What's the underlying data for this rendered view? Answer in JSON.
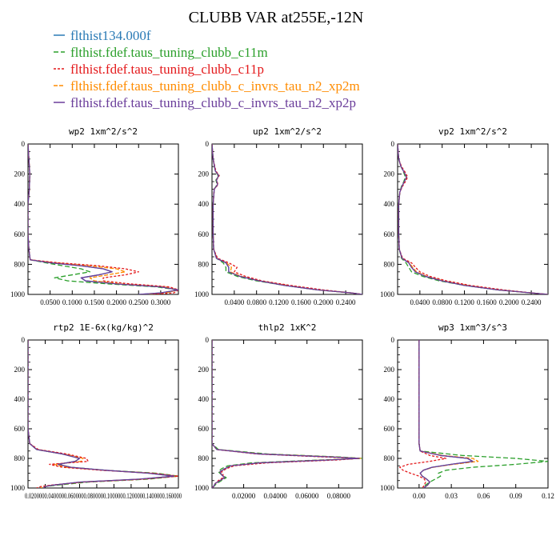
{
  "title": "CLUBB VAR at255E,-12N",
  "legend": [
    {
      "label": "flthist134.000f",
      "color": "#2a7ab5",
      "dash": "none"
    },
    {
      "label": "flthist.fdef.taus_tuning_clubb_c11m",
      "color": "#2ca02c",
      "dash": "6,3"
    },
    {
      "label": "flthist.fdef.taus_tuning_clubb_c11p",
      "color": "#e41a1c",
      "dash": "3,2"
    },
    {
      "label": "flthist.fdef.taus_tuning_clubb_c_invrs_tau_n2_xp2m",
      "color": "#ff8c00",
      "dash": "5,2"
    },
    {
      "label": "flthist.fdef.taus_tuning_clubb_c_invrs_tau_n2_xp2p",
      "color": "#6a3d9a",
      "dash": "none"
    }
  ],
  "chart_data": [
    {
      "type": "line",
      "title": "wp2  1xm^2/s^2",
      "xlim": [
        0,
        0.34
      ],
      "ylim": [
        1000,
        0
      ],
      "xticks": [
        0.05,
        0.1,
        0.15,
        0.2,
        0.25,
        0.3
      ],
      "xtick_labels": [
        "0.0500",
        "0.1000",
        "0.1500",
        "0.2000",
        "0.2500",
        "0.3000"
      ],
      "yticks": [
        0,
        200,
        400,
        600,
        800,
        1000
      ],
      "ytick_labels": [
        "0",
        "200",
        "400",
        "600",
        "800",
        "1000"
      ],
      "y": [
        0,
        100,
        200,
        300,
        400,
        500,
        600,
        700,
        770,
        790,
        810,
        830,
        850,
        870,
        890,
        910,
        930,
        950,
        970,
        990,
        1000
      ],
      "series": [
        {
          "values": [
            0.0,
            0.002,
            0.004,
            0.003,
            0.0,
            0.0,
            0.0,
            0.002,
            0.005,
            0.05,
            0.12,
            0.17,
            0.19,
            0.16,
            0.12,
            0.13,
            0.2,
            0.3,
            0.34,
            0.3,
            0.25
          ]
        },
        {
          "values": [
            0.0,
            0.002,
            0.004,
            0.003,
            0.0,
            0.0,
            0.0,
            0.002,
            0.005,
            0.04,
            0.08,
            0.12,
            0.14,
            0.1,
            0.06,
            0.09,
            0.18,
            0.29,
            0.34,
            0.31,
            0.26
          ]
        },
        {
          "values": [
            0.0,
            0.002,
            0.004,
            0.003,
            0.0,
            0.0,
            0.0,
            0.002,
            0.005,
            0.07,
            0.16,
            0.22,
            0.25,
            0.22,
            0.17,
            0.17,
            0.23,
            0.32,
            0.34,
            0.33,
            0.28
          ]
        },
        {
          "values": [
            0.0,
            0.002,
            0.004,
            0.003,
            0.0,
            0.0,
            0.0,
            0.002,
            0.005,
            0.06,
            0.14,
            0.2,
            0.22,
            0.18,
            0.14,
            0.15,
            0.21,
            0.31,
            0.34,
            0.31,
            0.26
          ]
        },
        {
          "values": [
            0.0,
            0.002,
            0.004,
            0.003,
            0.0,
            0.0,
            0.0,
            0.002,
            0.005,
            0.05,
            0.12,
            0.17,
            0.19,
            0.16,
            0.12,
            0.13,
            0.2,
            0.3,
            0.34,
            0.3,
            0.25
          ]
        }
      ]
    },
    {
      "type": "line",
      "title": "up2  1xm^2/s^2",
      "xlim": [
        0,
        0.27
      ],
      "ylim": [
        1000,
        0
      ],
      "xticks": [
        0.04,
        0.08,
        0.12,
        0.16,
        0.2,
        0.24
      ],
      "xtick_labels": [
        "0.0400",
        "0.0800",
        "0.1200",
        "0.1600",
        "0.2000",
        "0.2400"
      ],
      "yticks": [
        0,
        200,
        400,
        600,
        800,
        1000
      ],
      "ytick_labels": [
        "0",
        "200",
        "400",
        "600",
        "800",
        "1000"
      ],
      "y": [
        0,
        100,
        180,
        210,
        240,
        270,
        300,
        400,
        500,
        600,
        700,
        760,
        790,
        820,
        850,
        880,
        910,
        940,
        970,
        990,
        1000
      ],
      "series": [
        {
          "values": [
            0.0,
            0.002,
            0.006,
            0.012,
            0.008,
            0.01,
            0.004,
            0.002,
            0.002,
            0.002,
            0.003,
            0.008,
            0.025,
            0.03,
            0.03,
            0.05,
            0.085,
            0.13,
            0.19,
            0.25,
            0.27
          ]
        },
        {
          "values": [
            0.0,
            0.002,
            0.006,
            0.011,
            0.007,
            0.009,
            0.004,
            0.002,
            0.002,
            0.002,
            0.003,
            0.008,
            0.02,
            0.025,
            0.025,
            0.045,
            0.08,
            0.13,
            0.19,
            0.25,
            0.27
          ]
        },
        {
          "values": [
            0.0,
            0.002,
            0.007,
            0.013,
            0.008,
            0.011,
            0.004,
            0.002,
            0.002,
            0.002,
            0.003,
            0.01,
            0.03,
            0.045,
            0.04,
            0.06,
            0.09,
            0.14,
            0.2,
            0.25,
            0.27
          ]
        },
        {
          "values": [
            0.0,
            0.002,
            0.006,
            0.012,
            0.008,
            0.01,
            0.004,
            0.002,
            0.002,
            0.002,
            0.003,
            0.009,
            0.026,
            0.035,
            0.033,
            0.052,
            0.086,
            0.135,
            0.19,
            0.25,
            0.27
          ]
        },
        {
          "values": [
            0.0,
            0.002,
            0.006,
            0.012,
            0.008,
            0.01,
            0.004,
            0.002,
            0.002,
            0.002,
            0.003,
            0.008,
            0.025,
            0.03,
            0.03,
            0.05,
            0.085,
            0.13,
            0.19,
            0.25,
            0.27
          ]
        }
      ]
    },
    {
      "type": "line",
      "title": "vp2  1xm^2/s^2",
      "xlim": [
        0,
        0.27
      ],
      "ylim": [
        1000,
        0
      ],
      "xticks": [
        0.04,
        0.08,
        0.12,
        0.16,
        0.2,
        0.24
      ],
      "xtick_labels": [
        "0.0400",
        "0.0800",
        "0.1200",
        "0.1600",
        "0.2000",
        "0.2400"
      ],
      "yticks": [
        0,
        200,
        400,
        600,
        800,
        1000
      ],
      "ytick_labels": [
        "0",
        "200",
        "400",
        "600",
        "800",
        "1000"
      ],
      "y": [
        0,
        100,
        150,
        190,
        220,
        250,
        280,
        320,
        400,
        500,
        600,
        700,
        760,
        790,
        820,
        850,
        880,
        910,
        940,
        970,
        990,
        1000
      ],
      "series": [
        {
          "values": [
            0.0,
            0.002,
            0.006,
            0.012,
            0.016,
            0.012,
            0.008,
            0.004,
            0.002,
            0.002,
            0.002,
            0.003,
            0.008,
            0.02,
            0.025,
            0.032,
            0.05,
            0.08,
            0.12,
            0.18,
            0.24,
            0.27
          ]
        },
        {
          "values": [
            0.0,
            0.002,
            0.006,
            0.011,
            0.014,
            0.011,
            0.007,
            0.004,
            0.002,
            0.002,
            0.002,
            0.003,
            0.007,
            0.015,
            0.02,
            0.025,
            0.045,
            0.075,
            0.12,
            0.18,
            0.24,
            0.27
          ]
        },
        {
          "values": [
            0.0,
            0.002,
            0.007,
            0.014,
            0.018,
            0.014,
            0.009,
            0.004,
            0.002,
            0.002,
            0.002,
            0.003,
            0.009,
            0.025,
            0.032,
            0.04,
            0.058,
            0.088,
            0.13,
            0.19,
            0.24,
            0.27
          ]
        },
        {
          "values": [
            0.0,
            0.002,
            0.006,
            0.012,
            0.016,
            0.012,
            0.008,
            0.004,
            0.002,
            0.002,
            0.002,
            0.003,
            0.008,
            0.021,
            0.027,
            0.034,
            0.052,
            0.082,
            0.125,
            0.18,
            0.24,
            0.27
          ]
        },
        {
          "values": [
            0.0,
            0.002,
            0.006,
            0.012,
            0.016,
            0.012,
            0.008,
            0.004,
            0.002,
            0.002,
            0.002,
            0.003,
            0.008,
            0.02,
            0.025,
            0.032,
            0.05,
            0.08,
            0.12,
            0.18,
            0.24,
            0.27
          ]
        }
      ]
    },
    {
      "type": "line",
      "title": "rtp2  1E-6x(kg/kg)^2",
      "xlim": [
        0,
        0.175
      ],
      "ylim": [
        1000,
        0
      ],
      "xticks": [
        0.02,
        0.04,
        0.06,
        0.08,
        0.1,
        0.12,
        0.14,
        0.16
      ],
      "xtick_labels": [
        "0.0200",
        "0.0400",
        "0.0600",
        "0.0800",
        "0.1000",
        "0.1200",
        "0.1400",
        "0.1600"
      ],
      "x_label_text": "0.0200000.0400000.0600000.0800000.1000000.1200000.1400000.160000",
      "yticks": [
        0,
        200,
        400,
        600,
        800,
        1000
      ],
      "ytick_labels": [
        "0",
        "200",
        "400",
        "600",
        "800",
        "1000"
      ],
      "y": [
        0,
        200,
        400,
        600,
        700,
        740,
        770,
        800,
        820,
        840,
        860,
        880,
        900,
        920,
        940,
        960,
        980,
        990,
        1000
      ],
      "series": [
        {
          "values": [
            0.0,
            0.0,
            0.0,
            0.0,
            0.002,
            0.01,
            0.04,
            0.06,
            0.055,
            0.035,
            0.05,
            0.09,
            0.14,
            0.17,
            0.13,
            0.06,
            0.03,
            0.02,
            0.018
          ]
        },
        {
          "values": [
            0.0,
            0.0,
            0.0,
            0.0,
            0.002,
            0.01,
            0.04,
            0.06,
            0.055,
            0.035,
            0.05,
            0.09,
            0.15,
            0.175,
            0.14,
            0.07,
            0.035,
            0.02,
            0.018
          ]
        },
        {
          "values": [
            0.0,
            0.0,
            0.0,
            0.0,
            0.002,
            0.012,
            0.045,
            0.068,
            0.07,
            0.025,
            0.04,
            0.085,
            0.145,
            0.175,
            0.135,
            0.065,
            0.028,
            0.015,
            0.01
          ]
        },
        {
          "values": [
            0.0,
            0.0,
            0.0,
            0.0,
            0.002,
            0.011,
            0.042,
            0.064,
            0.062,
            0.03,
            0.045,
            0.088,
            0.142,
            0.172,
            0.132,
            0.062,
            0.03,
            0.018,
            0.015
          ]
        },
        {
          "values": [
            0.0,
            0.0,
            0.0,
            0.0,
            0.002,
            0.01,
            0.04,
            0.06,
            0.055,
            0.035,
            0.05,
            0.09,
            0.14,
            0.17,
            0.13,
            0.06,
            0.03,
            0.02,
            0.018
          ]
        }
      ]
    },
    {
      "type": "line",
      "title": "thlp2  1xK^2",
      "xlim": [
        0,
        0.095
      ],
      "ylim": [
        1000,
        0
      ],
      "xticks": [
        0.02,
        0.04,
        0.06,
        0.08
      ],
      "xtick_labels": [
        "0.02000",
        "0.04000",
        "0.06000",
        "0.08000"
      ],
      "yticks": [
        0,
        200,
        400,
        600,
        800,
        1000
      ],
      "ytick_labels": [
        "0",
        "200",
        "400",
        "600",
        "800",
        "1000"
      ],
      "y": [
        0,
        200,
        400,
        600,
        700,
        740,
        770,
        790,
        800,
        810,
        830,
        850,
        870,
        890,
        910,
        930,
        950,
        970,
        990,
        1000
      ],
      "series": [
        {
          "values": [
            0.0,
            0.0,
            0.0,
            0.0,
            0.0,
            0.003,
            0.03,
            0.075,
            0.093,
            0.075,
            0.03,
            0.012,
            0.008,
            0.005,
            0.006,
            0.008,
            0.005,
            0.002,
            0.001,
            0.0
          ]
        },
        {
          "values": [
            0.0,
            0.0,
            0.0,
            0.0,
            0.0,
            0.004,
            0.035,
            0.08,
            0.095,
            0.07,
            0.025,
            0.01,
            0.006,
            0.004,
            0.006,
            0.009,
            0.006,
            0.003,
            0.001,
            0.0
          ]
        },
        {
          "values": [
            0.0,
            0.0,
            0.0,
            0.0,
            0.0,
            0.003,
            0.028,
            0.07,
            0.093,
            0.08,
            0.035,
            0.014,
            0.009,
            0.006,
            0.007,
            0.007,
            0.004,
            0.002,
            0.001,
            0.0
          ]
        },
        {
          "values": [
            0.0,
            0.0,
            0.0,
            0.0,
            0.0,
            0.003,
            0.031,
            0.077,
            0.094,
            0.074,
            0.03,
            0.012,
            0.008,
            0.005,
            0.006,
            0.008,
            0.005,
            0.002,
            0.001,
            0.0
          ]
        },
        {
          "values": [
            0.0,
            0.0,
            0.0,
            0.0,
            0.0,
            0.003,
            0.03,
            0.075,
            0.093,
            0.075,
            0.03,
            0.012,
            0.008,
            0.005,
            0.006,
            0.008,
            0.005,
            0.002,
            0.001,
            0.0
          ]
        }
      ]
    },
    {
      "type": "line",
      "title": "wp3  1xm^3/s^3",
      "xlim": [
        -0.02,
        0.12
      ],
      "ylim": [
        1000,
        0
      ],
      "xticks": [
        0.0,
        0.03,
        0.06,
        0.09,
        0.12
      ],
      "xtick_labels": [
        "0.00",
        "0.03",
        "0.06",
        "0.09",
        "0.12"
      ],
      "yticks": [
        0,
        200,
        400,
        600,
        800,
        1000
      ],
      "ytick_labels": [
        "0",
        "200",
        "400",
        "600",
        "800",
        "1000"
      ],
      "y": [
        0,
        200,
        300,
        400,
        500,
        600,
        700,
        750,
        780,
        800,
        820,
        840,
        860,
        880,
        900,
        920,
        940,
        960,
        980,
        1000
      ],
      "series": [
        {
          "values": [
            0.0,
            0.0,
            0.0,
            0.0,
            0.0,
            0.0,
            0.0,
            0.001,
            0.02,
            0.045,
            0.05,
            0.03,
            0.012,
            0.004,
            0.001,
            0.003,
            0.007,
            0.01,
            0.008,
            0.004
          ]
        },
        {
          "values": [
            0.0,
            0.0,
            0.0,
            0.0,
            0.0,
            0.0,
            0.0,
            0.001,
            0.04,
            0.09,
            0.12,
            0.09,
            0.05,
            0.025,
            0.018,
            0.02,
            0.015,
            0.01,
            0.006,
            0.003
          ]
        },
        {
          "values": [
            0.0,
            0.0,
            0.0,
            0.0,
            0.0,
            0.0,
            0.0,
            0.001,
            0.01,
            0.025,
            0.01,
            -0.01,
            -0.018,
            -0.015,
            -0.008,
            0.0,
            0.005,
            0.006,
            0.005,
            0.003
          ]
        },
        {
          "values": [
            0.0,
            0.0,
            0.0,
            0.0,
            0.0,
            0.0,
            0.0,
            0.001,
            0.022,
            0.05,
            0.055,
            0.032,
            0.013,
            0.004,
            0.001,
            0.003,
            0.007,
            0.01,
            0.008,
            0.004
          ]
        },
        {
          "values": [
            0.0,
            0.0,
            0.0,
            0.0,
            0.0,
            0.0,
            0.0,
            0.001,
            0.02,
            0.045,
            0.05,
            0.03,
            0.012,
            0.004,
            0.001,
            0.003,
            0.007,
            0.01,
            0.008,
            0.004
          ]
        }
      ]
    }
  ]
}
